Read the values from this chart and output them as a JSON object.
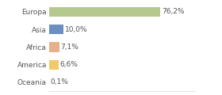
{
  "categories": [
    "Europa",
    "Asia",
    "Africa",
    "America",
    "Oceania"
  ],
  "values": [
    76.2,
    10.0,
    7.1,
    6.6,
    0.1
  ],
  "labels": [
    "76,2%",
    "10,0%",
    "7,1%",
    "6,6%",
    "0,1%"
  ],
  "bar_colors": [
    "#b5c98e",
    "#6b8fbe",
    "#e8b08a",
    "#efc96a",
    "#f5c8b8"
  ],
  "background_color": "#ffffff",
  "text_color": "#555555",
  "label_fontsize": 6.5,
  "tick_fontsize": 6.5,
  "figsize": [
    2.8,
    1.2
  ],
  "dpi": 100,
  "xlim": [
    0,
    100
  ],
  "grid_color": "#d8d8d8",
  "bar_height": 0.55
}
